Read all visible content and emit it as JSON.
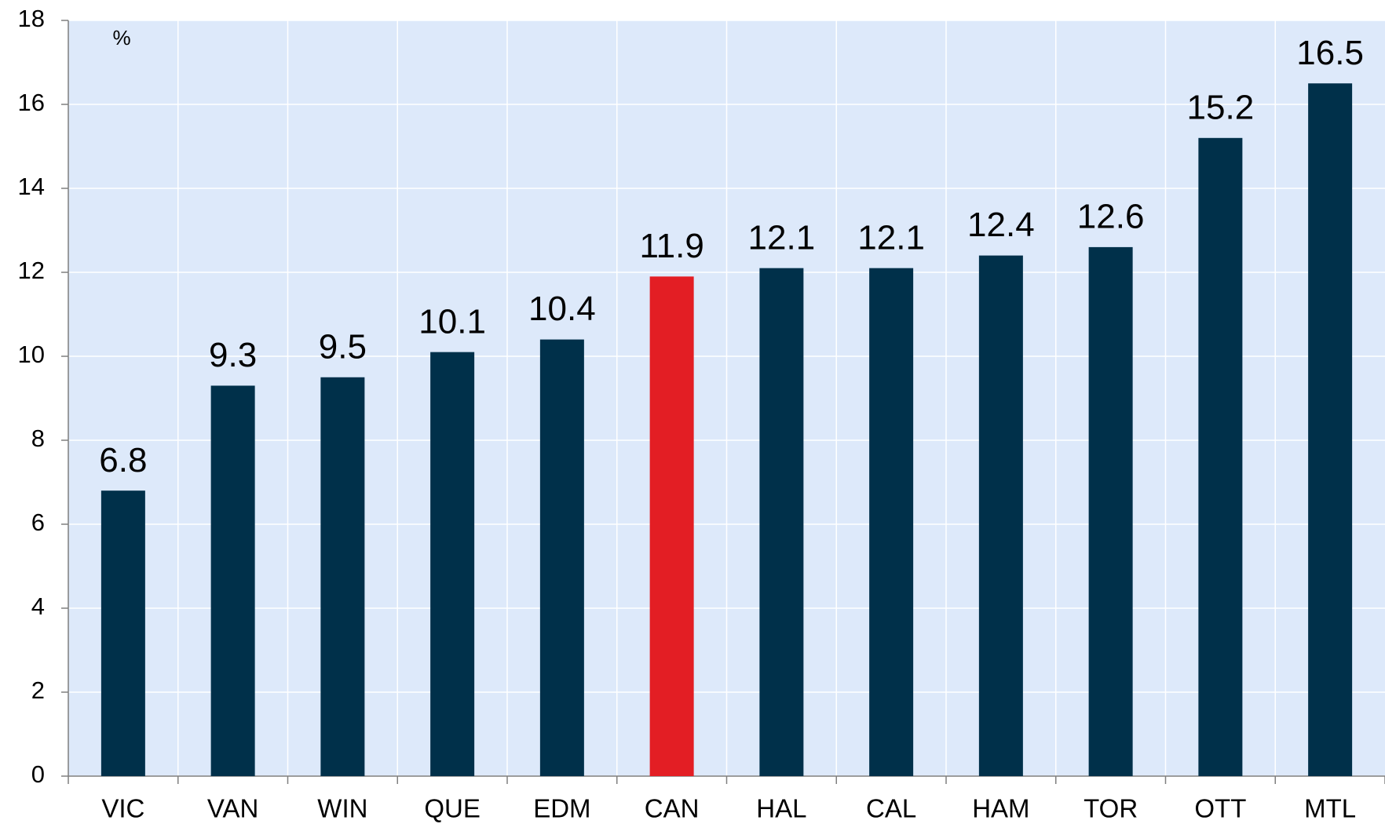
{
  "chart_data": {
    "type": "bar",
    "annotation": "%",
    "categories": [
      "VIC",
      "VAN",
      "WIN",
      "QUE",
      "EDM",
      "CAN",
      "HAL",
      "CAL",
      "HAM",
      "TOR",
      "OTT",
      "MTL"
    ],
    "values": [
      6.8,
      9.3,
      9.5,
      10.1,
      10.4,
      11.9,
      12.1,
      12.1,
      12.4,
      12.6,
      15.2,
      16.5
    ],
    "colors": [
      "#00304a",
      "#00304a",
      "#00304a",
      "#00304a",
      "#00304a",
      "#e31e24",
      "#00304a",
      "#00304a",
      "#00304a",
      "#00304a",
      "#00304a",
      "#00304a"
    ],
    "ylim": [
      0,
      18
    ],
    "yticks": [
      0,
      2,
      4,
      6,
      8,
      10,
      12,
      14,
      16,
      18
    ],
    "grid": true
  }
}
